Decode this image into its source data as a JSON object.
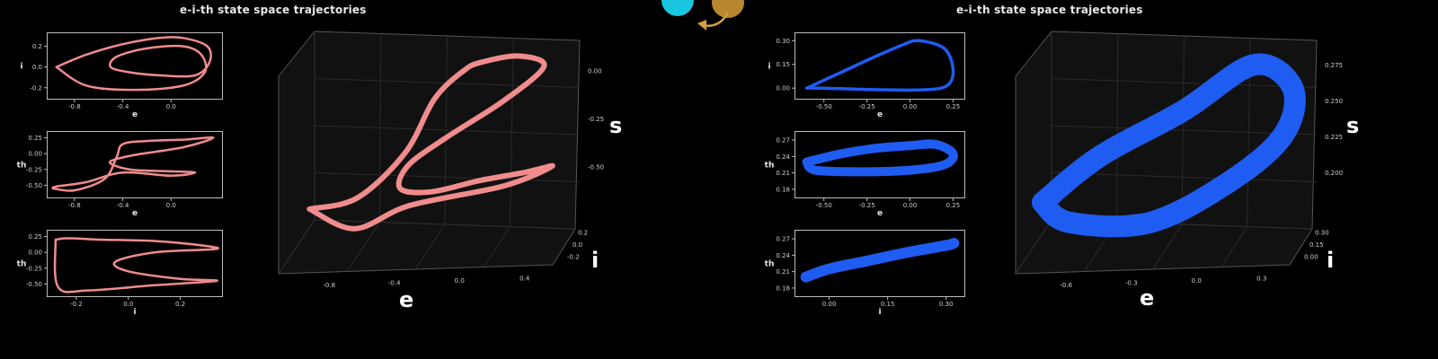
{
  "titles": {
    "left": "e-i-th state space trajectories",
    "right": "e-i-th state space trajectories"
  },
  "colors": {
    "left": "#f08c8c",
    "right": "#1f5cf2",
    "node_s": "#19c8e0",
    "node_f": "#b8862e",
    "arrow": "#d0a040"
  },
  "chart_data": [
    {
      "type": "line",
      "title": "",
      "xlabel": "e",
      "ylabel": "i",
      "xticks": [
        "-0.8",
        "-0.4",
        "0.0"
      ],
      "yticks": [
        "0.2",
        "0.0",
        "-0.2"
      ],
      "xlim": [
        -1.0,
        0.4
      ],
      "ylim": [
        -0.28,
        0.3
      ],
      "series": [
        {
          "x": [
            -0.95,
            -0.7,
            -0.4,
            -0.1,
            0.1,
            0.3,
            0.32,
            0.2,
            -0.1,
            -0.35,
            -0.5,
            -0.45,
            -0.2,
            0.1,
            0.25,
            0.28,
            0.1,
            -0.3,
            -0.7,
            -0.95
          ],
          "y": [
            0.0,
            0.12,
            0.22,
            0.28,
            0.28,
            0.2,
            0.05,
            -0.08,
            -0.08,
            -0.05,
            0.0,
            0.1,
            0.18,
            0.2,
            0.12,
            -0.05,
            -0.18,
            -0.22,
            -0.18,
            0.0
          ]
        }
      ]
    },
    {
      "type": "line",
      "title": "",
      "xlabel": "e",
      "ylabel": "th",
      "xticks": [
        "-0.8",
        "-0.4",
        "0.0"
      ],
      "yticks": [
        "0.25",
        "0.00",
        "-0.25",
        "-0.50"
      ],
      "xlim": [
        -1.0,
        0.4
      ],
      "ylim": [
        -0.65,
        0.3
      ],
      "series": [
        {
          "x": [
            -0.98,
            -0.8,
            -0.55,
            -0.45,
            -0.4,
            -0.2,
            0.1,
            0.35,
            0.1,
            -0.3,
            -0.5,
            -0.45,
            -0.3,
            0.0,
            0.2,
            0.0,
            -0.4,
            -0.7,
            -0.95,
            -0.98
          ],
          "y": [
            -0.55,
            -0.58,
            -0.4,
            -0.05,
            0.15,
            0.2,
            0.22,
            0.25,
            0.1,
            -0.02,
            -0.12,
            -0.2,
            -0.26,
            -0.28,
            -0.3,
            -0.35,
            -0.3,
            -0.45,
            -0.52,
            -0.55
          ]
        }
      ]
    },
    {
      "type": "line",
      "title": "",
      "xlabel": "i",
      "ylabel": "th",
      "xticks": [
        "-0.2",
        "0.0",
        "0.2"
      ],
      "yticks": [
        "0.25",
        "0.00",
        "-0.25",
        "-0.50"
      ],
      "xlim": [
        -0.3,
        0.35
      ],
      "ylim": [
        -0.65,
        0.3
      ],
      "series": [
        {
          "x": [
            -0.28,
            -0.25,
            -0.2,
            -0.1,
            0.1,
            0.3,
            0.33,
            0.1,
            -0.05,
            0.0,
            0.2,
            0.34,
            0.1,
            -0.15,
            -0.27,
            -0.28
          ],
          "y": [
            0.2,
            0.22,
            0.22,
            0.2,
            0.18,
            0.1,
            0.05,
            0.0,
            -0.15,
            -0.3,
            -0.42,
            -0.45,
            -0.52,
            -0.6,
            -0.55,
            0.2
          ]
        }
      ]
    },
    {
      "type": "line",
      "title": "",
      "xlabel": "e",
      "ylabel": "i",
      "zlabel": "s",
      "xticks": [
        "-0.8",
        "-0.4",
        "0.0",
        "0.4"
      ],
      "yticks": [
        "0.2",
        "0.0",
        "-0.2"
      ],
      "zticks": [
        "0.00",
        "-0.25",
        "-0.50"
      ],
      "series": [
        {
          "x": [
            -0.85,
            -0.6,
            -0.35,
            -0.2,
            -0.05,
            0.05,
            0.25,
            0.4,
            0.2,
            -0.1,
            -0.3,
            -0.35,
            -0.2,
            0.05,
            0.3,
            0.45,
            0.2,
            -0.3,
            -0.6,
            -0.85
          ],
          "y": [
            0.0,
            0.05,
            0.1,
            0.15,
            0.2,
            0.2,
            0.15,
            0.05,
            -0.05,
            -0.1,
            -0.15,
            -0.1,
            0.0,
            0.05,
            0.05,
            0.0,
            -0.05,
            -0.1,
            -0.05,
            0.0
          ],
          "z": [
            -0.7,
            -0.65,
            -0.4,
            -0.1,
            0.05,
            0.1,
            0.15,
            0.12,
            -0.05,
            -0.25,
            -0.4,
            -0.55,
            -0.6,
            -0.55,
            -0.5,
            -0.45,
            -0.55,
            -0.65,
            -0.8,
            -0.7
          ]
        }
      ]
    },
    {
      "type": "line",
      "title": "",
      "xlabel": "e",
      "ylabel": "i",
      "xticks": [
        "-0.50",
        "-0.25",
        "0.00",
        "0.25"
      ],
      "yticks": [
        "0.30",
        "0.15",
        "0.00"
      ],
      "xlim": [
        -0.65,
        0.3
      ],
      "ylim": [
        -0.05,
        0.33
      ],
      "series": [
        {
          "x": [
            -0.6,
            -0.4,
            -0.2,
            -0.05,
            0.05,
            0.2,
            0.25,
            0.22,
            0.1,
            -0.2,
            -0.5,
            -0.6
          ],
          "y": [
            0.0,
            0.1,
            0.2,
            0.27,
            0.3,
            0.25,
            0.12,
            0.02,
            -0.01,
            -0.01,
            0.0,
            0.0
          ]
        }
      ]
    },
    {
      "type": "line",
      "title": "",
      "xlabel": "e",
      "ylabel": "th",
      "xticks": [
        "-0.50",
        "-0.25",
        "0.00",
        "0.25"
      ],
      "yticks": [
        "0.27",
        "0.24",
        "0.21",
        "0.18"
      ],
      "xlim": [
        -0.65,
        0.3
      ],
      "ylim": [
        0.17,
        0.28
      ],
      "series": [
        {
          "x": [
            -0.6,
            -0.4,
            -0.2,
            0.0,
            0.15,
            0.25,
            0.2,
            0.0,
            -0.3,
            -0.55,
            -0.6
          ],
          "y": [
            0.23,
            0.245,
            0.255,
            0.26,
            0.262,
            0.245,
            0.225,
            0.215,
            0.212,
            0.215,
            0.23
          ]
        }
      ]
    },
    {
      "type": "line",
      "title": "",
      "xlabel": "i",
      "ylabel": "th",
      "xticks": [
        "0.00",
        "0.15",
        "0.30"
      ],
      "yticks": [
        "0.27",
        "0.24",
        "0.21",
        "0.18"
      ],
      "xlim": [
        -0.08,
        0.34
      ],
      "ylim": [
        0.17,
        0.28
      ],
      "series": [
        {
          "x": [
            -0.06,
            0.0,
            0.1,
            0.2,
            0.3,
            0.32
          ],
          "y": [
            0.2,
            0.215,
            0.23,
            0.245,
            0.258,
            0.262
          ]
        }
      ]
    },
    {
      "type": "line",
      "title": "",
      "xlabel": "e",
      "ylabel": "i",
      "zlabel": "s",
      "xticks": [
        "-0.6",
        "-0.3",
        "0.0",
        "0.3"
      ],
      "yticks": [
        "0.30",
        "0.15",
        "0.00"
      ],
      "zticks": [
        "0.275",
        "0.250",
        "0.225",
        "0.200"
      ],
      "series": [
        {
          "x": [
            -0.6,
            -0.4,
            -0.1,
            0.15,
            0.3,
            0.28,
            0.1,
            -0.2,
            -0.5,
            -0.6
          ],
          "y": [
            0.0,
            0.1,
            0.2,
            0.3,
            0.25,
            0.15,
            0.05,
            0.0,
            0.0,
            0.0
          ],
          "z": [
            0.21,
            0.23,
            0.25,
            0.27,
            0.26,
            0.24,
            0.22,
            0.2,
            0.2,
            0.21
          ]
        }
      ]
    }
  ],
  "labels3d": {
    "left": {
      "e": "e",
      "i": "i",
      "s": "s"
    },
    "right": {
      "e": "e",
      "i": "i",
      "s": "s"
    }
  },
  "nodes": {
    "s": "S",
    "f": "f"
  }
}
